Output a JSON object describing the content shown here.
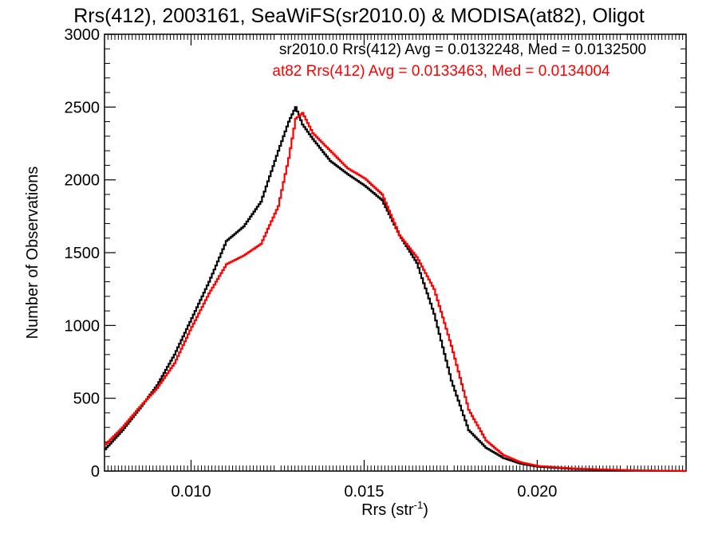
{
  "chart_data": {
    "type": "line",
    "title": "Rrs(412), 2003161, SeaWiFS(sr2010.0) & MODISA(at82), Oligot",
    "xlabel_main": "Rrs (str",
    "xlabel_sup": "-1",
    "xlabel_tail": ")",
    "ylabel": "Number of Observations",
    "xlim": [
      0.0075,
      0.0243
    ],
    "ylim": [
      0,
      3000
    ],
    "x_ticks": [
      0.01,
      0.015,
      0.02
    ],
    "x_tick_labels": [
      "0.010",
      "0.015",
      "0.020"
    ],
    "y_ticks": [
      0,
      500,
      1000,
      1500,
      2000,
      2500,
      3000
    ],
    "y_tick_labels": [
      "0",
      "500",
      "1000",
      "1500",
      "2000",
      "2500",
      "3000"
    ],
    "grid": false,
    "legend_placement": "top-right",
    "series": [
      {
        "name": "sr2010.0",
        "label": "sr2010.0 Rrs(412) Avg = 0.0132248, Med = 0.0132500",
        "color": "#000000",
        "x": [
          0.0075,
          0.008,
          0.0085,
          0.009,
          0.0095,
          0.01,
          0.0105,
          0.011,
          0.0115,
          0.012,
          0.0125,
          0.0128,
          0.013,
          0.0132,
          0.0135,
          0.014,
          0.0145,
          0.015,
          0.0155,
          0.016,
          0.0165,
          0.017,
          0.0175,
          0.018,
          0.0185,
          0.019,
          0.0195,
          0.02,
          0.021,
          0.022,
          0.023,
          0.0243
        ],
        "y": [
          150,
          280,
          430,
          590,
          800,
          1050,
          1300,
          1580,
          1680,
          1850,
          2200,
          2400,
          2500,
          2380,
          2280,
          2130,
          2040,
          1960,
          1860,
          1620,
          1430,
          1080,
          620,
          280,
          160,
          90,
          50,
          30,
          15,
          8,
          3,
          0
        ]
      },
      {
        "name": "at82",
        "label": "at82 Rrs(412) Avg = 0.0133463, Med = 0.0134004",
        "color": "#ff0000",
        "x": [
          0.0075,
          0.008,
          0.0085,
          0.009,
          0.0095,
          0.01,
          0.0105,
          0.011,
          0.0115,
          0.012,
          0.0125,
          0.0128,
          0.013,
          0.0132,
          0.0135,
          0.014,
          0.0145,
          0.015,
          0.0155,
          0.016,
          0.0165,
          0.017,
          0.0175,
          0.018,
          0.0185,
          0.019,
          0.0195,
          0.02,
          0.021,
          0.022,
          0.023,
          0.0243
        ],
        "y": [
          180,
          300,
          440,
          570,
          740,
          990,
          1220,
          1420,
          1480,
          1560,
          1820,
          2150,
          2420,
          2460,
          2320,
          2200,
          2080,
          2010,
          1900,
          1620,
          1470,
          1250,
          860,
          420,
          210,
          110,
          60,
          35,
          18,
          10,
          4,
          0
        ]
      }
    ]
  }
}
